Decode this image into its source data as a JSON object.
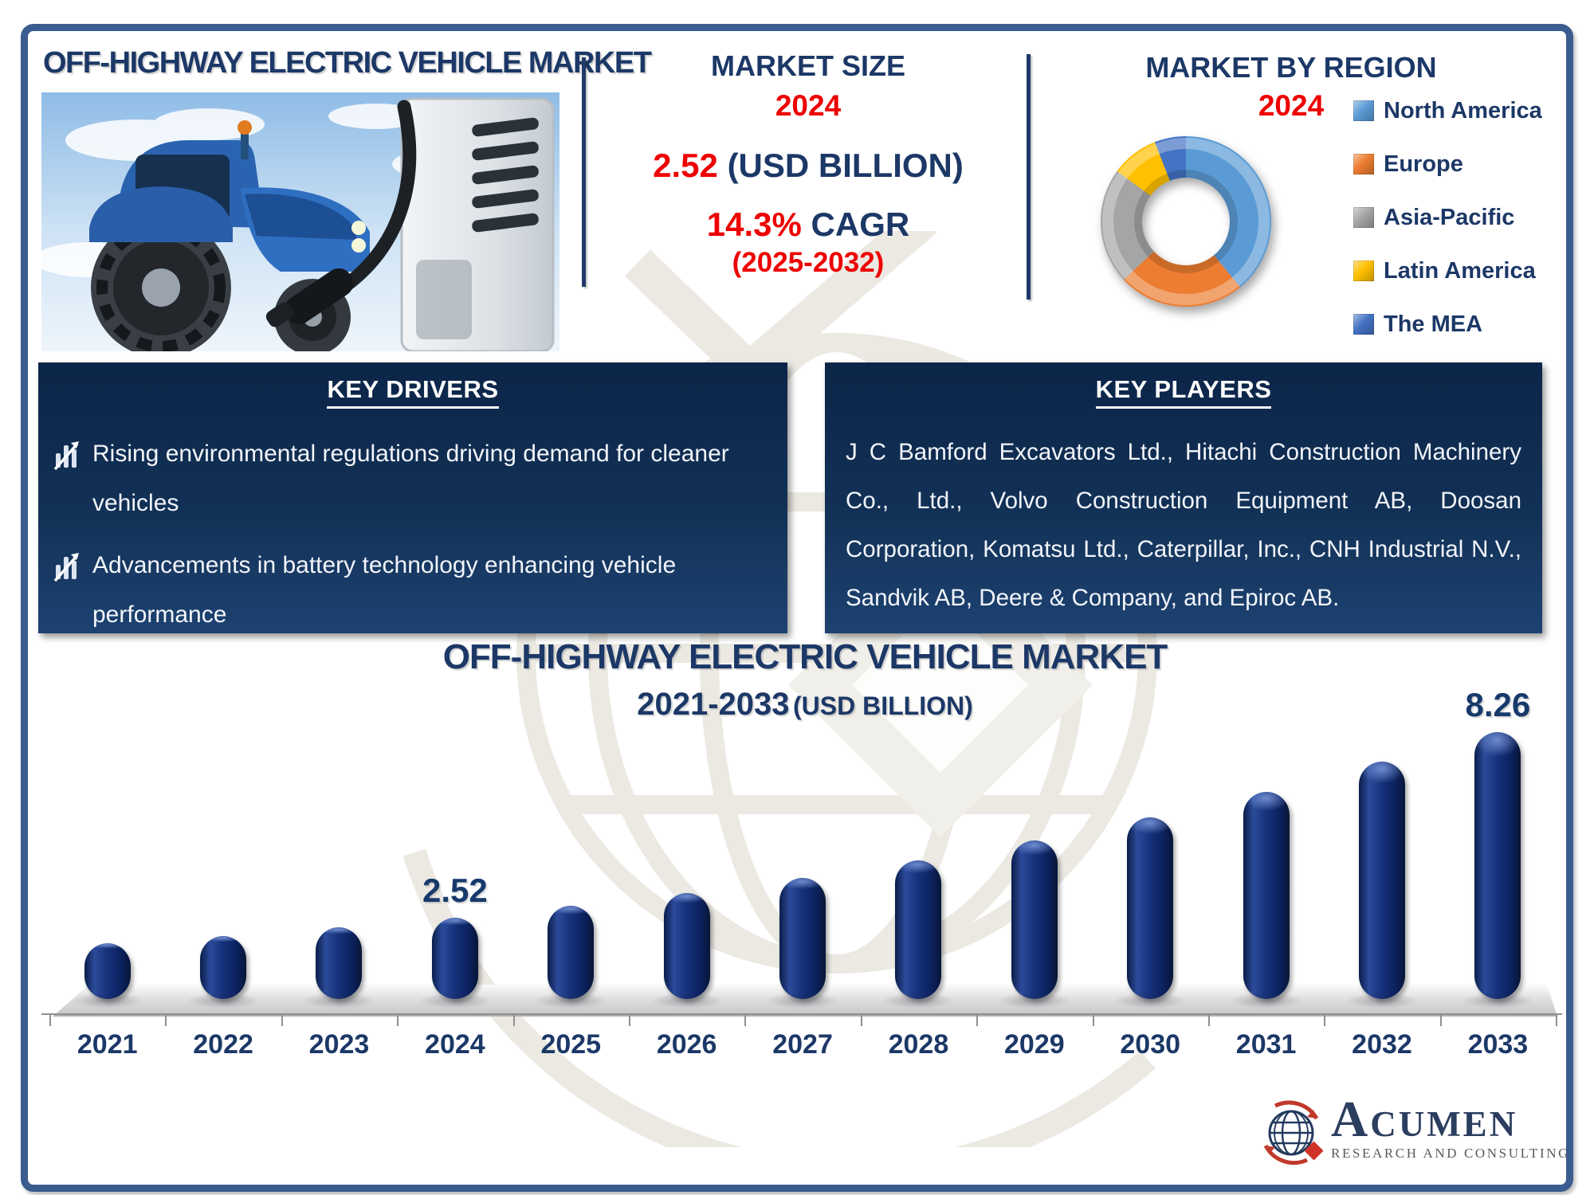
{
  "page": {
    "title": "OFF-HIGHWAY ELECTRIC VEHICLE MARKET"
  },
  "market_size": {
    "heading": "MARKET SIZE",
    "year": "2024",
    "value": "2.52",
    "value_unit": "(USD BILLION)",
    "cagr_value": "14.3%",
    "cagr_label": "CAGR",
    "cagr_period": "(2025-2032)"
  },
  "market_by_region": {
    "heading": "MARKET BY REGION",
    "year": "2024",
    "legend": [
      "North America",
      "Europe",
      "Asia-Pacific",
      "Latin America",
      "The MEA"
    ]
  },
  "key_drivers": {
    "heading": "KEY DRIVERS",
    "items": [
      "Rising environmental regulations driving demand for cleaner vehicles",
      "Advancements in battery technology enhancing vehicle performance"
    ]
  },
  "key_players": {
    "heading": "KEY PLAYERS",
    "text": "J C Bamford Excavators Ltd., Hitachi Construction Machinery Co., Ltd., Volvo Construction Equipment AB, Doosan Corporation, Komatsu Ltd., Caterpillar, Inc., CNH Industrial N.V., Sandvik AB, Deere & Company, and Epiroc AB."
  },
  "chart_section": {
    "title": "OFF-HIGHWAY ELECTRIC VEHICLE MARKET",
    "subtitle_range": "2021-2033",
    "subtitle_unit": "(USD BILLION)"
  },
  "chart_data": [
    {
      "type": "pie",
      "donut": true,
      "title": "MARKET BY REGION 2024",
      "labels": [
        "North America",
        "Europe",
        "Asia-Pacific",
        "Latin America",
        "The MEA"
      ],
      "values_percent": [
        39,
        24,
        22,
        9,
        6
      ],
      "colors": [
        "#5B9BD5",
        "#ED7D31",
        "#A5A5A5",
        "#FFC000",
        "#4472C4"
      ],
      "legend_position": "right"
    },
    {
      "type": "bar",
      "title": "OFF-HIGHWAY ELECTRIC VEHICLE MARKET 2021-2033 (USD BILLION)",
      "categories": [
        "2021",
        "2022",
        "2023",
        "2024",
        "2025",
        "2026",
        "2027",
        "2028",
        "2029",
        "2030",
        "2031",
        "2032",
        "2033"
      ],
      "values": [
        1.72,
        1.96,
        2.23,
        2.52,
        2.88,
        3.29,
        3.76,
        4.3,
        4.92,
        5.62,
        6.43,
        7.35,
        8.26
      ],
      "labeled_values": {
        "2024": "2.52",
        "2033": "8.26"
      },
      "bar_color": "#12306B",
      "xlabel": "",
      "ylabel": "USD Billion",
      "ylim": [
        0,
        9
      ],
      "grid": false
    }
  ],
  "logo": {
    "name": "Acumen",
    "tagline": "RESEARCH AND CONSULTING"
  },
  "colors": {
    "navy_text": "#1C3867",
    "red_accent": "#EE0000",
    "box_background": "#0C2549",
    "bar_fill": "#12306B",
    "frame_border": "#3B5C8E"
  }
}
